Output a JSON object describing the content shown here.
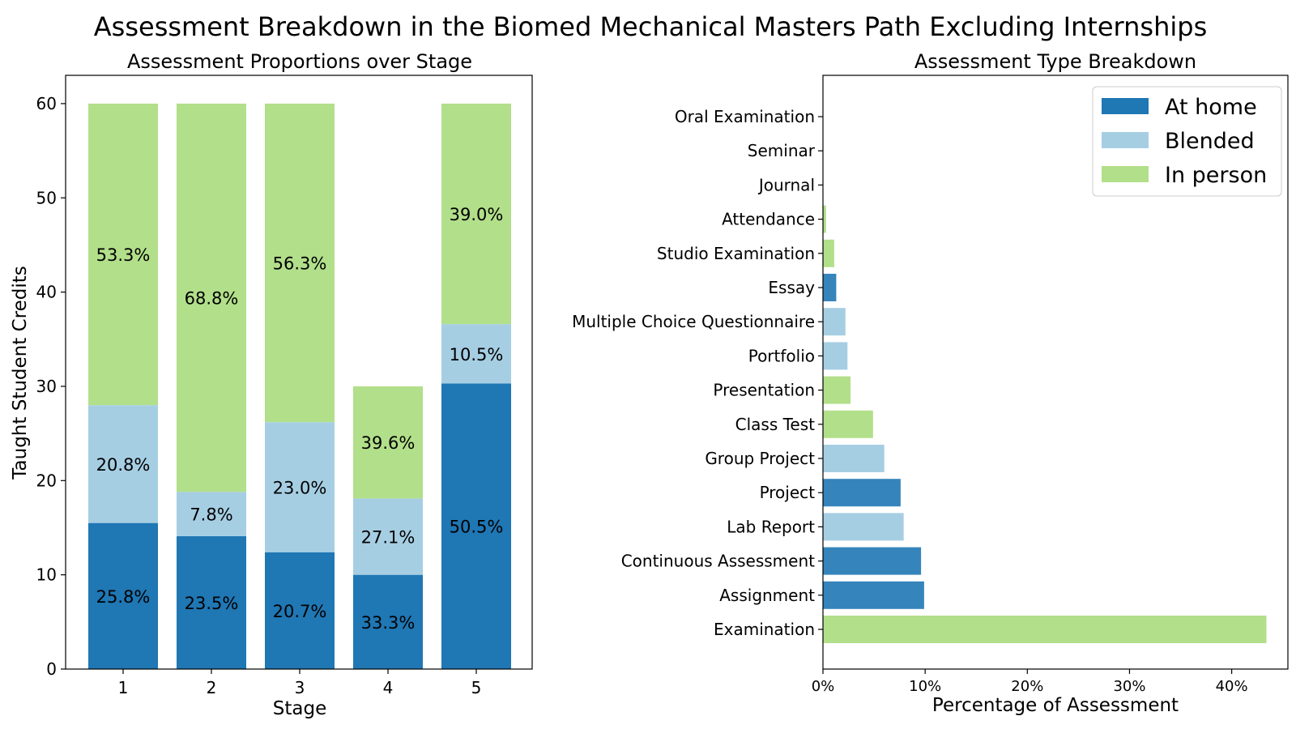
{
  "figure": {
    "title": "Assessment Breakdown in the  Biomed Mechanical Masters Path Excluding Internships"
  },
  "colors": {
    "at_home": "#1f77b4",
    "blended": "#a6cee3",
    "in_person": "#b2df8a"
  },
  "chart_data": [
    {
      "type": "bar",
      "stacked": true,
      "title": "Assessment Proportions over Stage",
      "xlabel": "Stage",
      "ylabel": "Taught Student Credits",
      "categories": [
        "1",
        "2",
        "3",
        "4",
        "5"
      ],
      "ylim": [
        0,
        63
      ],
      "yticks": [
        0,
        10,
        20,
        30,
        40,
        50,
        60
      ],
      "grid": false,
      "series": [
        {
          "name": "At home",
          "color_key": "at_home",
          "values": [
            15.5,
            14.1,
            12.4,
            10.0,
            30.3
          ],
          "labels": [
            "25.8%",
            "23.5%",
            "20.7%",
            "33.3%",
            "50.5%"
          ]
        },
        {
          "name": "Blended",
          "color_key": "blended",
          "values": [
            12.5,
            4.7,
            13.8,
            8.1,
            6.3
          ],
          "labels": [
            "20.8%",
            "7.8%",
            "23.0%",
            "27.1%",
            "10.5%"
          ]
        },
        {
          "name": "In person",
          "color_key": "in_person",
          "values": [
            32.0,
            41.2,
            33.8,
            11.9,
            23.4
          ],
          "labels": [
            "53.3%",
            "68.8%",
            "56.3%",
            "39.6%",
            "39.0%"
          ]
        }
      ]
    },
    {
      "type": "bar",
      "orientation": "horizontal",
      "title": "Assessment Type Breakdown",
      "xlabel": "Percentage of Assessment",
      "ylabel": "",
      "xlim": [
        0,
        45.5
      ],
      "xticks": [
        0,
        10,
        20,
        30,
        40
      ],
      "xtick_labels": [
        "0%",
        "10%",
        "20%",
        "30%",
        "40%"
      ],
      "grid": false,
      "legend_position": "top-right",
      "legend": [
        {
          "label": "At home",
          "color_key": "at_home"
        },
        {
          "label": "Blended",
          "color_key": "blended"
        },
        {
          "label": "In person",
          "color_key": "in_person"
        }
      ],
      "bars": [
        {
          "category": "Examination",
          "value": 43.4,
          "color_key": "in_person"
        },
        {
          "category": "Assignment",
          "value": 9.9,
          "color_key": "at_home"
        },
        {
          "category": "Continuous Assessment",
          "value": 9.6,
          "color_key": "at_home"
        },
        {
          "category": "Lab Report",
          "value": 7.9,
          "color_key": "blended"
        },
        {
          "category": "Project",
          "value": 7.6,
          "color_key": "at_home"
        },
        {
          "category": "Group Project",
          "value": 6.0,
          "color_key": "blended"
        },
        {
          "category": "Class Test",
          "value": 4.9,
          "color_key": "in_person"
        },
        {
          "category": "Presentation",
          "value": 2.7,
          "color_key": "in_person"
        },
        {
          "category": "Portfolio",
          "value": 2.4,
          "color_key": "blended"
        },
        {
          "category": "Multiple Choice Questionnaire",
          "value": 2.2,
          "color_key": "blended"
        },
        {
          "category": "Essay",
          "value": 1.3,
          "color_key": "at_home"
        },
        {
          "category": "Studio Examination",
          "value": 1.1,
          "color_key": "in_person"
        },
        {
          "category": "Attendance",
          "value": 0.3,
          "color_key": "in_person"
        },
        {
          "category": "Journal",
          "value": 0.0,
          "color_key": "in_person"
        },
        {
          "category": "Seminar",
          "value": 0.0,
          "color_key": "in_person"
        },
        {
          "category": "Oral Examination",
          "value": 0.0,
          "color_key": "in_person"
        }
      ]
    }
  ]
}
